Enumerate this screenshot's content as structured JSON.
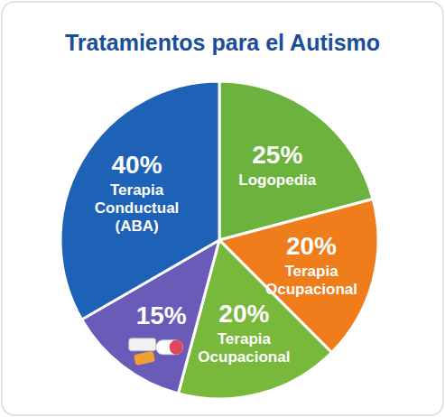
{
  "chart_data": {
    "type": "pie",
    "title": "Tratamientos para el Autismo",
    "categories": [
      "Logopedia",
      "Terapia Ocupacional",
      "Terapia Ocupacional",
      null,
      "Terapia Conductual (ABA)"
    ],
    "values": [
      25,
      20,
      20,
      15,
      40
    ],
    "value_labels": [
      "25%",
      "20%",
      "20%",
      "15%",
      "40%"
    ],
    "colors": [
      "#6cb33e",
      "#f07d1c",
      "#78b83a",
      "#6a5bb8",
      "#1e62b8"
    ],
    "data_labels": true
  }
}
